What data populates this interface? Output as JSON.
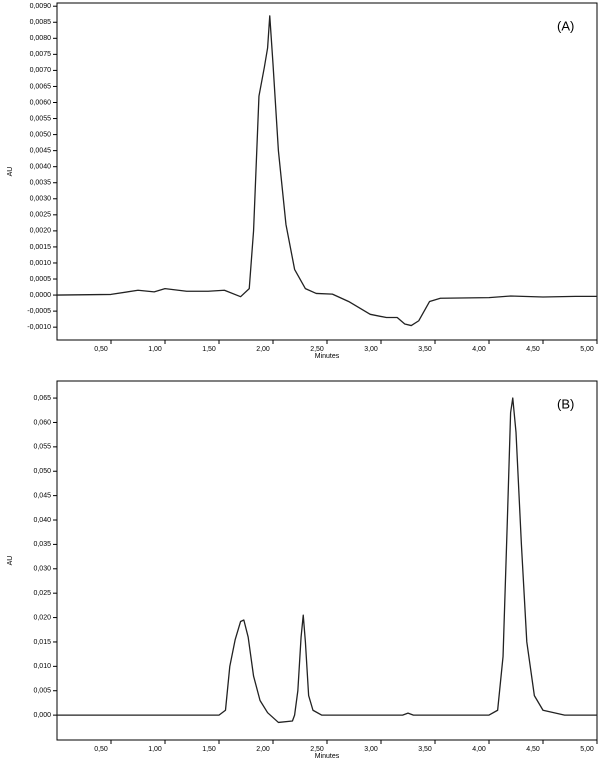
{
  "chart_data": [
    {
      "type": "line",
      "annotation": "(A)",
      "ylabel": "AU",
      "xlabel": "Minutes",
      "color": "#222222",
      "xlim": [
        0,
        5.0
      ],
      "ylim": [
        -0.0014,
        0.0091
      ],
      "xticks": [
        {
          "value": 0.5,
          "label": "0,50"
        },
        {
          "value": 1.0,
          "label": "1,00"
        },
        {
          "value": 1.5,
          "label": "1,50"
        },
        {
          "value": 2.0,
          "label": "2,00"
        },
        {
          "value": 2.5,
          "label": "2,50"
        },
        {
          "value": 3.0,
          "label": "3,00"
        },
        {
          "value": 3.5,
          "label": "3,50"
        },
        {
          "value": 4.0,
          "label": "4,00"
        },
        {
          "value": 4.5,
          "label": "4,50"
        },
        {
          "value": 5.0,
          "label": "5,00"
        }
      ],
      "yticks": [
        {
          "value": -0.001,
          "label": "-0,0010"
        },
        {
          "value": -0.0005,
          "label": "-0,0005"
        },
        {
          "value": 0,
          "label": "0,0000"
        },
        {
          "value": 0.0005,
          "label": "0,0005"
        },
        {
          "value": 0.001,
          "label": "0,0010"
        },
        {
          "value": 0.0015,
          "label": "0,0015"
        },
        {
          "value": 0.002,
          "label": "0,0020"
        },
        {
          "value": 0.0025,
          "label": "0,0025"
        },
        {
          "value": 0.003,
          "label": "0,0030"
        },
        {
          "value": 0.0035,
          "label": "0,0035"
        },
        {
          "value": 0.004,
          "label": "0,0040"
        },
        {
          "value": 0.0045,
          "label": "0,0045"
        },
        {
          "value": 0.005,
          "label": "0,0050"
        },
        {
          "value": 0.0055,
          "label": "0,0055"
        },
        {
          "value": 0.006,
          "label": "0,0060"
        },
        {
          "value": 0.0065,
          "label": "0,0065"
        },
        {
          "value": 0.007,
          "label": "0,0070"
        },
        {
          "value": 0.0075,
          "label": "0,0075"
        },
        {
          "value": 0.008,
          "label": "0,0080"
        },
        {
          "value": 0.0085,
          "label": "0,0085"
        },
        {
          "value": 0.009,
          "label": "0,0090"
        }
      ],
      "x": [
        0,
        0.5,
        0.75,
        0.9,
        1.0,
        1.2,
        1.4,
        1.55,
        1.7,
        1.78,
        1.82,
        1.87,
        1.92,
        1.95,
        1.97,
        2.0,
        2.05,
        2.12,
        2.2,
        2.3,
        2.4,
        2.55,
        2.7,
        2.9,
        3.05,
        3.15,
        3.22,
        3.28,
        3.35,
        3.45,
        3.55,
        4.0,
        4.2,
        4.5,
        4.8,
        5.0
      ],
      "values": [
        0,
        2e-05,
        0.00015,
        0.0001,
        0.0002,
        0.00012,
        0.00012,
        0.00015,
        -5e-05,
        0.0002,
        0.002,
        0.0062,
        0.0071,
        0.0077,
        0.0087,
        0.0072,
        0.0045,
        0.0022,
        0.0008,
        0.0002,
        5e-05,
        3e-05,
        -0.0002,
        -0.0006,
        -0.0007,
        -0.0007,
        -0.0009,
        -0.00095,
        -0.0008,
        -0.0002,
        -0.0001,
        -8e-05,
        -3e-05,
        -6e-05,
        -4e-05,
        -4e-05
      ]
    },
    {
      "type": "line",
      "annotation": "(B)",
      "ylabel": "AU",
      "xlabel": "Minutes",
      "color": "#222222",
      "xlim": [
        0,
        5.0
      ],
      "ylim": [
        -0.0051,
        0.0685
      ],
      "xticks": [
        {
          "value": 0.5,
          "label": "0,50"
        },
        {
          "value": 1.0,
          "label": "1,00"
        },
        {
          "value": 1.5,
          "label": "1,50"
        },
        {
          "value": 2.0,
          "label": "2,00"
        },
        {
          "value": 2.5,
          "label": "2,50"
        },
        {
          "value": 3.0,
          "label": "3,00"
        },
        {
          "value": 3.5,
          "label": "3,50"
        },
        {
          "value": 4.0,
          "label": "4,00"
        },
        {
          "value": 4.5,
          "label": "4,50"
        },
        {
          "value": 5.0,
          "label": "5,00"
        }
      ],
      "yticks": [
        {
          "value": 0,
          "label": "0,000"
        },
        {
          "value": 0.005,
          "label": "0,005"
        },
        {
          "value": 0.01,
          "label": "0,010"
        },
        {
          "value": 0.015,
          "label": "0,015"
        },
        {
          "value": 0.02,
          "label": "0,020"
        },
        {
          "value": 0.025,
          "label": "0,025"
        },
        {
          "value": 0.03,
          "label": "0,030"
        },
        {
          "value": 0.035,
          "label": "0,035"
        },
        {
          "value": 0.04,
          "label": "0,040"
        },
        {
          "value": 0.045,
          "label": "0,045"
        },
        {
          "value": 0.05,
          "label": "0,050"
        },
        {
          "value": 0.055,
          "label": "0,055"
        },
        {
          "value": 0.06,
          "label": "0,060"
        },
        {
          "value": 0.065,
          "label": "0,065"
        }
      ],
      "x": [
        0,
        1.5,
        1.56,
        1.6,
        1.65,
        1.7,
        1.73,
        1.77,
        1.82,
        1.88,
        1.95,
        2.05,
        2.18,
        2.2,
        2.23,
        2.26,
        2.28,
        2.3,
        2.33,
        2.37,
        2.45,
        3.2,
        3.25,
        3.3,
        4.0,
        4.08,
        4.13,
        4.17,
        4.2,
        4.22,
        4.25,
        4.3,
        4.35,
        4.42,
        4.5,
        4.7,
        5.0
      ],
      "values": [
        0,
        0,
        0.001,
        0.01,
        0.0155,
        0.0192,
        0.0195,
        0.016,
        0.008,
        0.003,
        0.0005,
        -0.0015,
        -0.0012,
        0,
        0.005,
        0.016,
        0.0205,
        0.015,
        0.004,
        0.001,
        0,
        0,
        0.0004,
        0,
        0,
        0.001,
        0.012,
        0.04,
        0.062,
        0.065,
        0.058,
        0.035,
        0.015,
        0.004,
        0.001,
        0,
        0
      ]
    }
  ]
}
